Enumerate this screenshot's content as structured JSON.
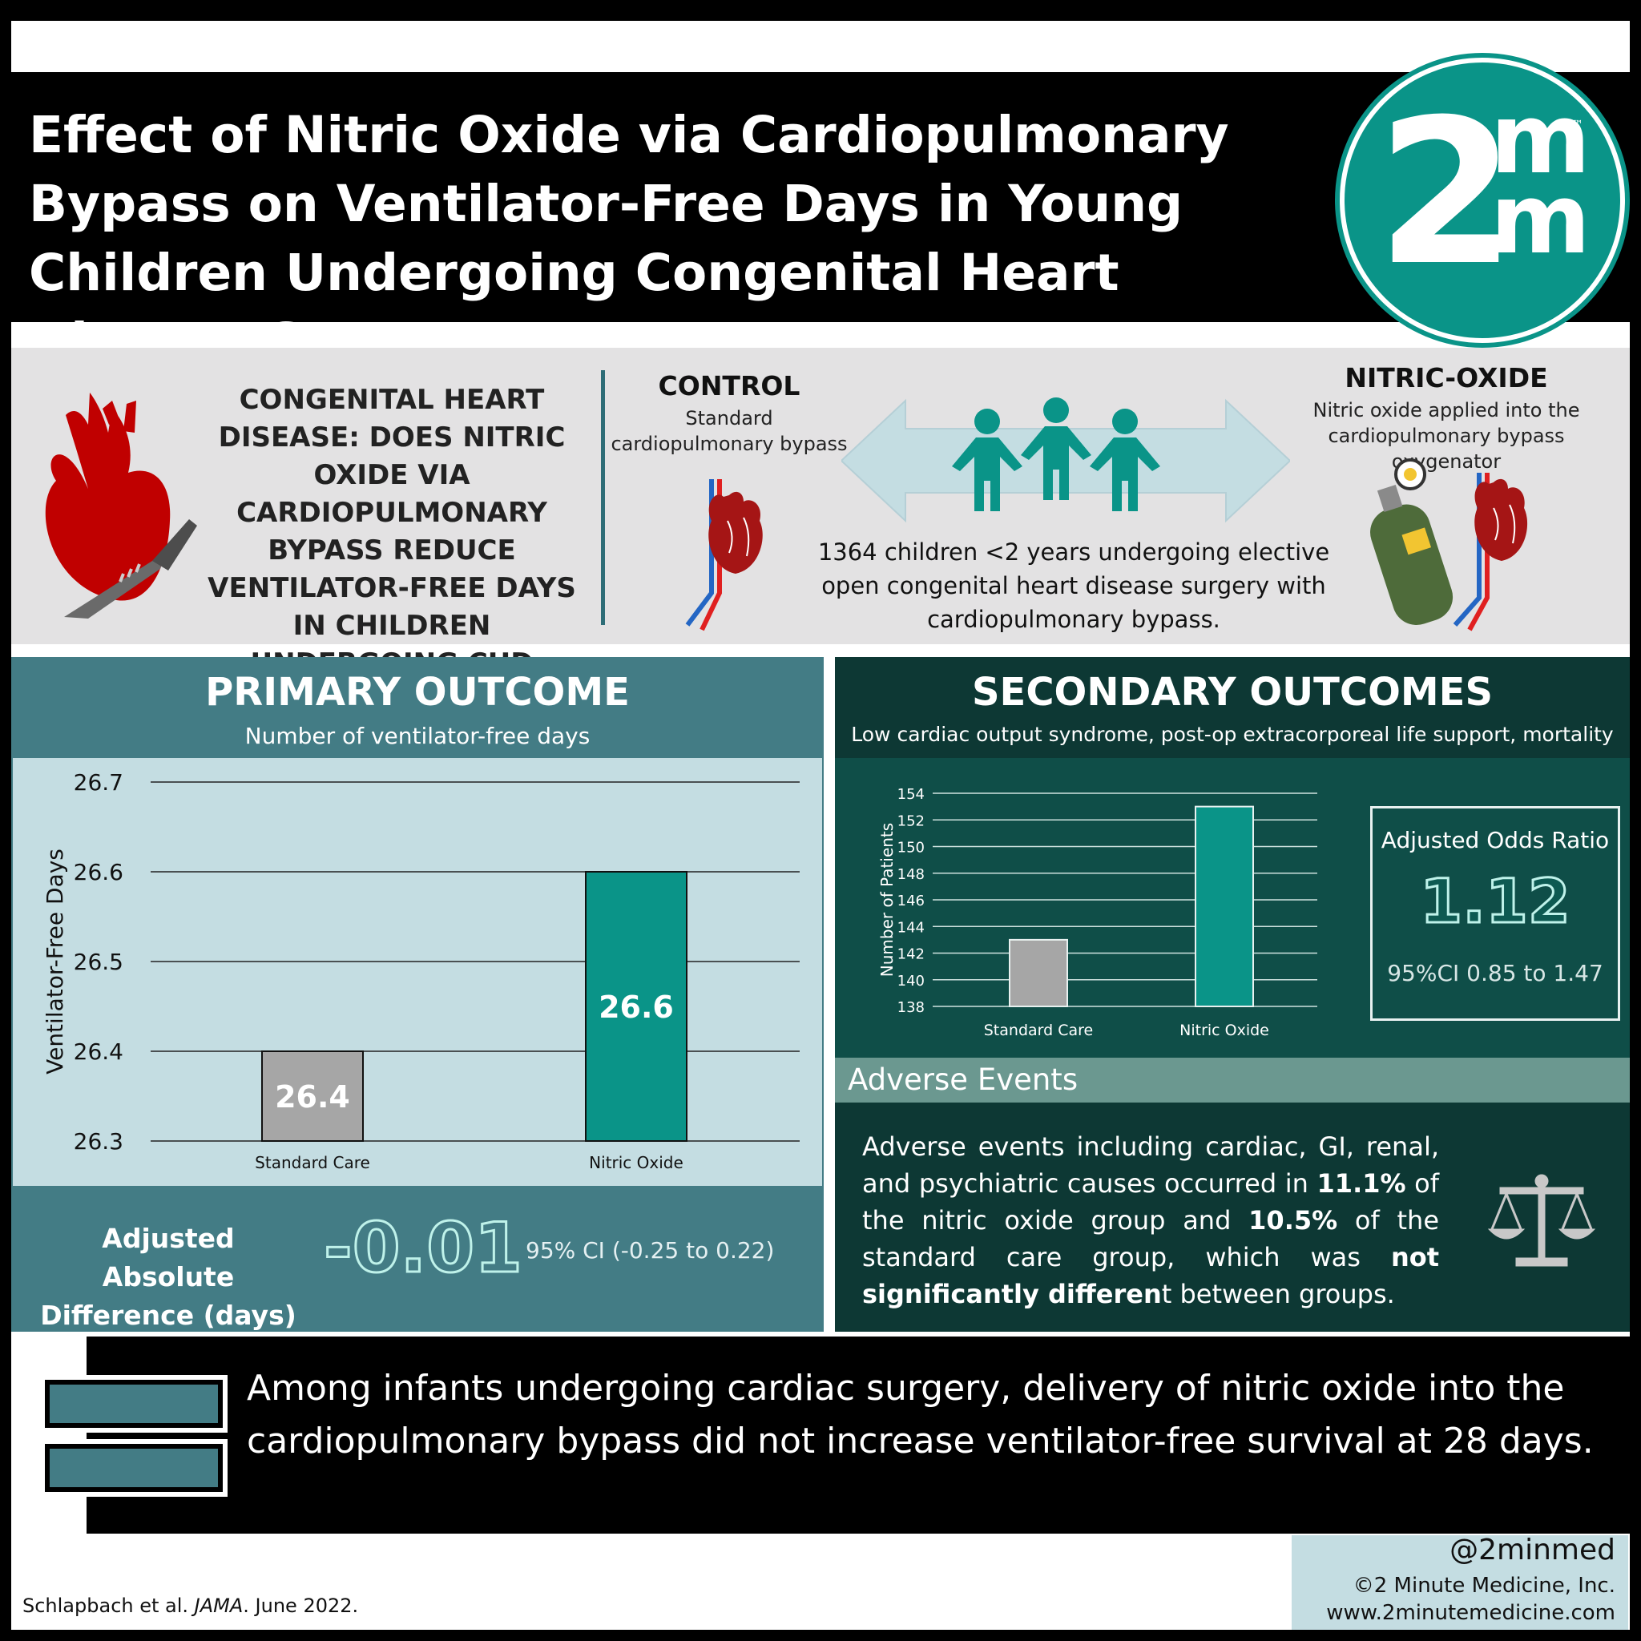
{
  "title": "Effect of Nitric Oxide via Cardiopulmonary Bypass on Ventilator-Free Days in Young Children Undergoing Congenital Heart Disease Surgery",
  "logo": {
    "main": "2",
    "sup": "m",
    "sub": "m",
    "tm": "™"
  },
  "question": "CONGENITAL HEART DISEASE: DOES NITRIC OXIDE VIA CARDIOPULMONARY BYPASS REDUCE VENTILATOR-FREE DAYS IN CHILDREN UNDERGOING CHD SURGERY?",
  "control": {
    "title": "CONTROL",
    "subtitle": "Standard cardiopulmonary bypass"
  },
  "nitric": {
    "title": "NITRIC-OXIDE",
    "subtitle": "Nitric oxide applied into the cardiopulmonary bypass oxygenator"
  },
  "study": "1364 children <2 years undergoing elective open congenital heart disease surgery with cardiopulmonary bypass.",
  "primary": {
    "title": "PRIMARY OUTCOME",
    "subtitle": "Number of ventilator-free days",
    "diff_label": "Adjusted Absolute Difference (days)",
    "diff_value": "-0.01",
    "ci": "95% CI (-0.25 to 0.22)"
  },
  "secondary": {
    "title": "SECONDARY OUTCOMES",
    "subtitle": "Low cardiac output syndrome, post-op extracorporeal life support, mortality",
    "or_label": "Adjusted Odds Ratio",
    "or_value": "1.12",
    "or_ci": "95%CI 0.85 to 1.47"
  },
  "adverse": {
    "title": "Adverse Events",
    "text_a": "Adverse events including cardiac, GI, renal, and psychiatric causes occurred in ",
    "pct_no": "11.1%",
    "text_b": " of the nitric oxide group and ",
    "pct_sc": "10.5%",
    "text_c": " of the standard care group, which was ",
    "bold_c": "not significantly differen",
    "text_d": "t between groups."
  },
  "conclusion": "Among infants undergoing cardiac surgery, delivery of nitric oxide into the cardiopulmonary bypass did not increase ventilator-free survival at 28 days.",
  "footer": {
    "handle": "@2minmed",
    "copyright": "©2 Minute Medicine, Inc.",
    "website": "www.2minutemedicine.com"
  },
  "citation": {
    "authors": "Schlapbach et al. ",
    "journal": "JAMA",
    "date": ". June 2022."
  },
  "colors": {
    "teal": "#0a9488",
    "gray": "#a6a6a6",
    "primary_panel": "#437c85",
    "secondary_panel": "#0d3834"
  },
  "chart_data": [
    {
      "type": "bar",
      "categories": [
        "Standard Care",
        "Nitric Oxide"
      ],
      "values": [
        26.4,
        26.6
      ],
      "value_labels": [
        "26.4",
        "26.6"
      ],
      "ylabel": "Ventilator-Free Days",
      "ylim": [
        26.3,
        26.7
      ],
      "yticks": [
        26.3,
        26.4,
        26.5,
        26.6,
        26.7
      ],
      "grid": true
    },
    {
      "type": "bar",
      "categories": [
        "Standard Care",
        "Nitric Oxide"
      ],
      "values": [
        143,
        153
      ],
      "ylabel": "Number of Patients",
      "ylim": [
        138,
        154
      ],
      "yticks": [
        138,
        140,
        142,
        144,
        146,
        148,
        150,
        152,
        154
      ],
      "grid": true
    }
  ]
}
